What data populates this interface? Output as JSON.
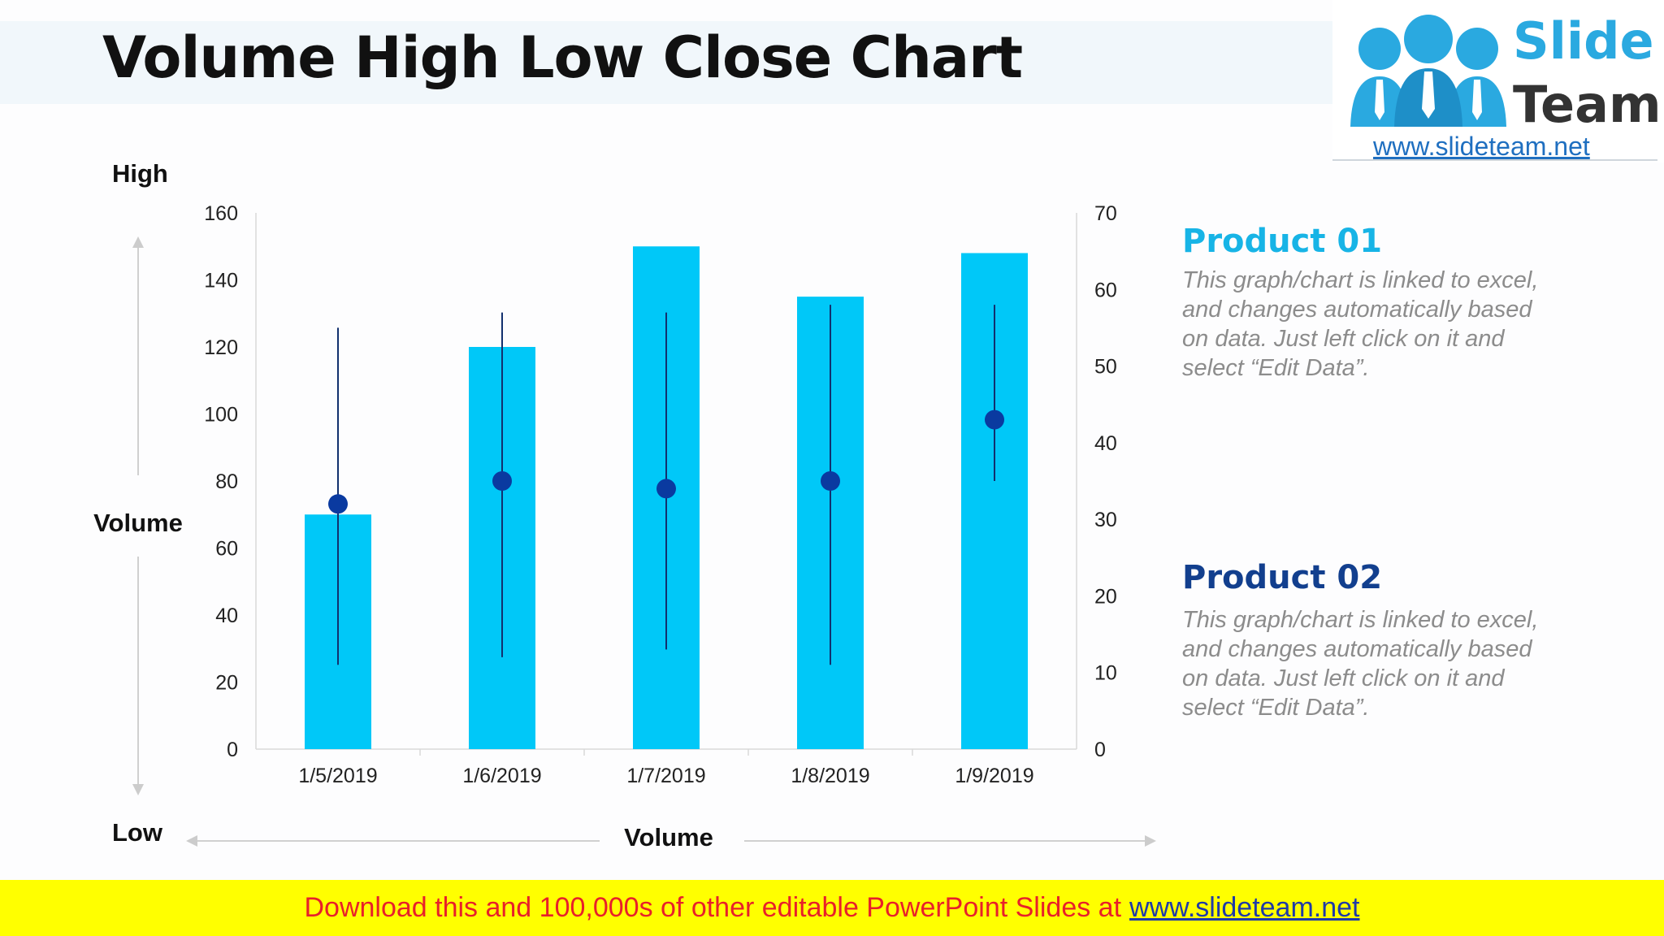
{
  "title": "Volume High Low Close Chart",
  "logo": {
    "word1": "Slide",
    "word2": "Team",
    "url": "www.slideteam.net"
  },
  "axis_labels": {
    "high": "High",
    "volume_side": "Volume",
    "low": "Low",
    "volume_bottom": "Volume"
  },
  "products": [
    {
      "heading": "Product 01",
      "color": "#17b4e6",
      "lines": [
        "This graph/chart is linked to excel,",
        "and changes automatically based",
        "on data. Just left click on it and",
        "select “Edit Data”."
      ]
    },
    {
      "heading": "Product 02",
      "color": "#123f8e",
      "lines": [
        "This graph/chart is linked to excel,",
        "and changes automatically based",
        "on data. Just left click on it and",
        "select “Edit Data”."
      ]
    }
  ],
  "footer": {
    "text": "Download this and 100,000s of other editable PowerPoint Slides at",
    "link": "www.slideteam.net"
  },
  "chart_data": {
    "type": "bar",
    "categories": [
      "1/5/2019",
      "1/6/2019",
      "1/7/2019",
      "1/8/2019",
      "1/9/2019"
    ],
    "volume": [
      70,
      120,
      150,
      135,
      148
    ],
    "high": [
      55,
      57,
      57,
      58,
      58
    ],
    "low": [
      11,
      12,
      13,
      11,
      35
    ],
    "close": [
      32,
      35,
      34,
      35,
      43
    ],
    "y_left": {
      "ylim": [
        0,
        160
      ],
      "ticks": [
        0,
        20,
        40,
        60,
        80,
        100,
        120,
        140,
        160
      ]
    },
    "y_right": {
      "ylim": [
        0,
        70
      ],
      "ticks": [
        0,
        10,
        20,
        30,
        40,
        50,
        60,
        70
      ]
    },
    "grid": false,
    "colors": {
      "bar": "#00c8f8",
      "range_line": "#12306e",
      "close_marker": "#0a3aa0",
      "axis": "#d9d9d9",
      "arrow": "#cccccc"
    }
  }
}
